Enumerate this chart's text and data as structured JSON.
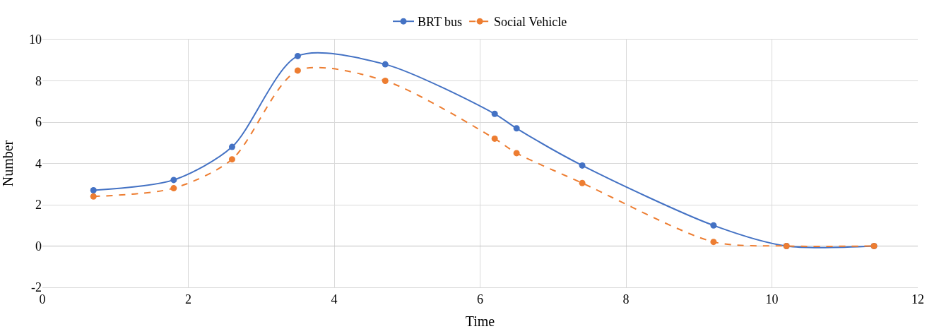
{
  "chart_data": {
    "type": "line",
    "xlabel": "Time",
    "ylabel": "Number",
    "x": [
      0.7,
      1.8,
      2.6,
      3.5,
      4.7,
      6.2,
      6.5,
      7.4,
      9.2,
      10.2,
      11.4
    ],
    "series": [
      {
        "name": "BRT bus",
        "color": "#4472c4",
        "line_style": "solid",
        "values": [
          2.7,
          3.2,
          4.8,
          9.2,
          8.8,
          6.4,
          5.7,
          3.9,
          1.0,
          0,
          0
        ]
      },
      {
        "name": "Social Vehicle",
        "color": "#ed7d31",
        "line_style": "dashed",
        "values": [
          2.4,
          2.8,
          4.2,
          8.5,
          8.0,
          5.2,
          4.5,
          3.05,
          0.2,
          0,
          0
        ]
      }
    ],
    "xlim": [
      0,
      12
    ],
    "xticks": [
      0,
      2,
      4,
      6,
      8,
      10,
      12
    ],
    "ylim": [
      -2,
      10
    ],
    "yticks": [
      -2,
      0,
      2,
      4,
      6,
      8,
      10
    ],
    "grid": true,
    "legend": "top",
    "marker": "circle"
  }
}
